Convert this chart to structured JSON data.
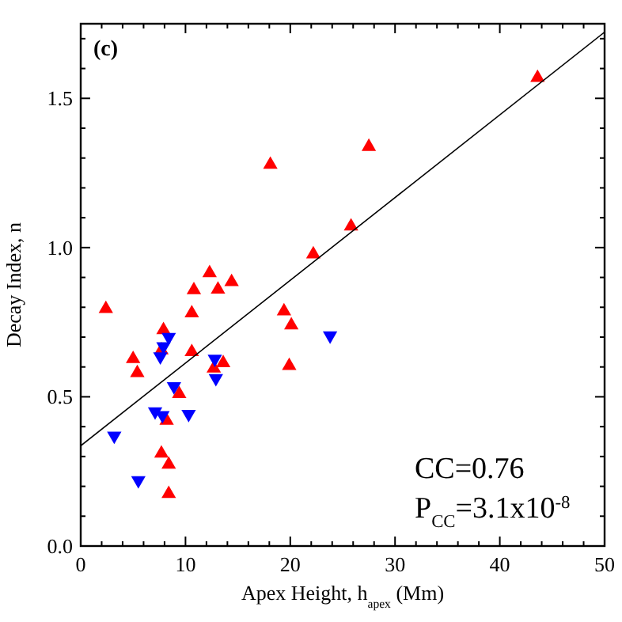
{
  "chart_data": {
    "type": "scatter",
    "xlabel": "Apex Height, h$_{apex}$ (Mm)",
    "ylabel": "Decay Index, n",
    "xlim": [
      0,
      50
    ],
    "ylim": [
      0,
      1.75
    ],
    "xticks": [
      0,
      10,
      20,
      30,
      40,
      50
    ],
    "yticks": [
      {
        "value": 0,
        "label": "0.0"
      },
      {
        "value": 0.5,
        "label": "0.5"
      },
      {
        "value": 1,
        "label": "1.0"
      },
      {
        "value": 1.5,
        "label": "1.5"
      }
    ],
    "grid": false,
    "annotations": [
      "(c)",
      "CC=0.76",
      "P$_{CC}$=3.1x10$^{-8}$"
    ],
    "series": [
      {
        "color": "#ff0000",
        "marker": "triangle",
        "x": [
          2.4,
          5.0,
          5.4,
          7.9,
          7.7,
          8.2,
          7.7,
          8.4,
          8.4,
          9.4,
          10.6,
          10.6,
          10.8,
          12.3,
          13.1,
          14.4,
          12.7,
          13.6,
          18.1,
          19.4,
          20.1,
          19.9,
          22.2,
          25.8,
          27.5,
          43.6
        ],
        "values": [
          0.795,
          0.627,
          0.58,
          0.724,
          0.656,
          0.42,
          0.31,
          0.273,
          0.175,
          0.51,
          0.65,
          0.78,
          0.858,
          0.915,
          0.86,
          0.885,
          0.595,
          0.613,
          1.278,
          0.787,
          0.74,
          0.604,
          0.978,
          1.071,
          1.338,
          1.569
        ]
      },
      {
        "color": "#0000ff",
        "marker": "triangle-down",
        "x": [
          3.2,
          5.5,
          7.1,
          7.8,
          7.6,
          7.9,
          8.4,
          8.9,
          10.3,
          12.8,
          12.9,
          23.8
        ],
        "values": [
          0.369,
          0.22,
          0.451,
          0.438,
          0.635,
          0.669,
          0.7,
          0.535,
          0.442,
          0.627,
          0.562,
          0.705
        ]
      },
      {
        "type": "line",
        "color": "#000000",
        "line_style": "solid",
        "x": [
          0,
          50
        ],
        "values": [
          0.336,
          1.722
        ]
      }
    ]
  }
}
